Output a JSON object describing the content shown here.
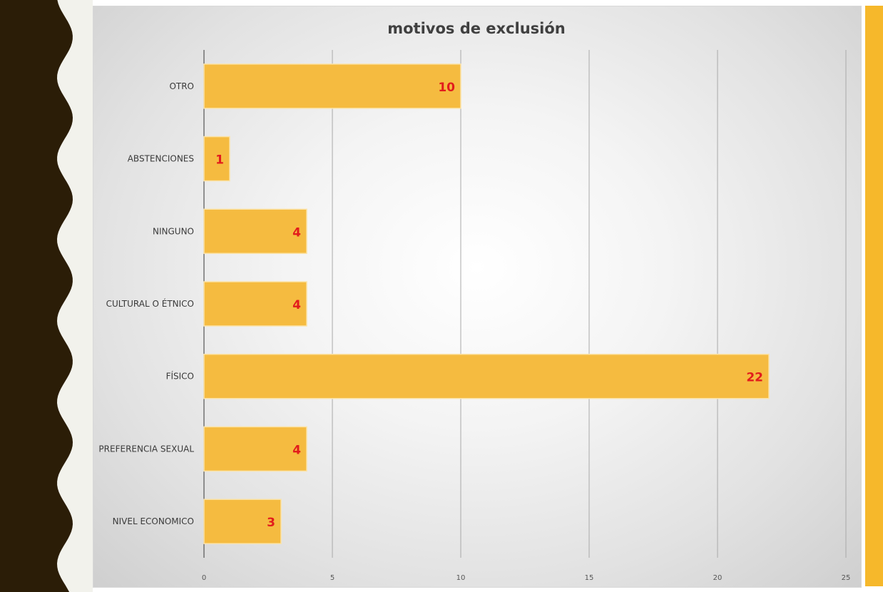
{
  "chart_data": {
    "type": "bar",
    "orientation": "horizontal",
    "title": "motivos de exclusión",
    "categories": [
      "OTRO",
      "ABSTENCIONES",
      "NINGUNO",
      "CULTURAL O ÉTNICO",
      "FÍSICO",
      "PREFERENCIA SEXUAL",
      "NIVEL ECONOMICO"
    ],
    "values": [
      10,
      1,
      4,
      4,
      22,
      4,
      3
    ],
    "data_labels": [
      "10",
      "1",
      "4",
      "4",
      "22",
      "4",
      "3"
    ],
    "x_ticks": [
      "0",
      "5",
      "10",
      "15",
      "20",
      "25"
    ],
    "xlim": [
      0,
      25
    ],
    "grid": "vertical",
    "legend": "none"
  },
  "colors": {
    "bar": "#f5bb40",
    "bar_edge": "#fbe3a8",
    "data_label": "#e21c1c",
    "wave_dark": "#2b1d07",
    "wave_light": "#f2f2ec",
    "accent_right": "#f6b82b",
    "gridline": "#a9a9a9",
    "axis": "#555555",
    "title": "#404040",
    "label_text": "#3a3a3a"
  }
}
